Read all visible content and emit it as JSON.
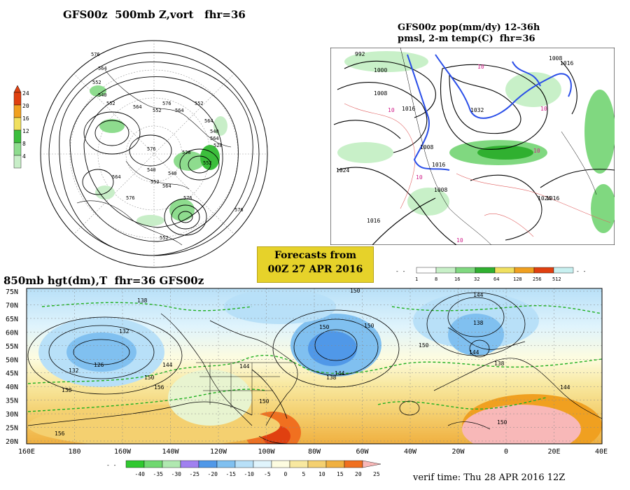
{
  "panel_500mb": {
    "title": "GFS00z  500mb Z,vort   fhr=36",
    "colorbar_ticks": [
      "24",
      "20",
      "16",
      "12",
      "8",
      "4"
    ],
    "contour_labels": [
      "576",
      "564",
      "552",
      "540",
      "552",
      "564",
      "576",
      "552",
      "564",
      "552",
      "564",
      "540",
      "528",
      "540",
      "552",
      "564",
      "576",
      "576",
      "552",
      "564",
      "528",
      "540",
      "552",
      "576",
      "564",
      "576"
    ]
  },
  "panel_precip": {
    "title_line1": "GFS00z pop(mm/dy) 12-36h",
    "title_line2": "pmsl, 2-m temp(C)  fhr=36",
    "isobar_labels": [
      "992",
      "1000",
      "1008",
      "1016",
      "1032",
      "1008",
      "1016",
      "1024",
      "1008",
      "1016",
      "1016",
      "1008",
      "1024",
      "1016"
    ],
    "temp_labels": [
      "10",
      "10",
      "10",
      "10",
      "10",
      "10"
    ],
    "colorbar_ticks": [
      "1",
      "8",
      "16",
      "32",
      "64",
      "128",
      "256",
      "512"
    ]
  },
  "forecast_box": {
    "line1": "Forecasts from",
    "line2": "00Z 27 APR 2016"
  },
  "panel_850mb": {
    "title": "850mb hgt(dm),T  fhr=36 GFS00z",
    "lat_labels": [
      "75N",
      "70N",
      "65N",
      "60N",
      "55N",
      "50N",
      "45N",
      "40N",
      "35N",
      "30N",
      "25N",
      "20N"
    ],
    "lon_labels": [
      "160E",
      "180",
      "160W",
      "140W",
      "120W",
      "100W",
      "80W",
      "60W",
      "40W",
      "20W",
      "0",
      "20E",
      "40E"
    ],
    "contour_labels": [
      "138",
      "132",
      "126",
      "132",
      "138",
      "144",
      "150",
      "156",
      "156",
      "150",
      "144",
      "138",
      "144",
      "150",
      "150",
      "144",
      "138",
      "144",
      "138",
      "144",
      "150",
      "150",
      "150"
    ],
    "colorbar_ticks": [
      "-40",
      "-35",
      "-30",
      "-25",
      "-20",
      "-15",
      "-10",
      "-5",
      "0",
      "5",
      "10",
      "15",
      "20",
      "25"
    ],
    "verif_time": "verif time: Thu 28 APR 2016 12Z"
  },
  "colors": {
    "vort_scale": [
      "#ffffff",
      "#c8eec8",
      "#8edc8e",
      "#3cbe3c",
      "#f0e060",
      "#f0a020",
      "#e04010"
    ],
    "precip_scale": [
      "#ffffff",
      "#c8f0c8",
      "#80d880",
      "#30b030",
      "#f0e060",
      "#f0a020",
      "#e04010",
      "#c8f0f0"
    ],
    "temp_scale": [
      "#30c830",
      "#70d870",
      "#b0e8b0",
      "#a080f0",
      "#5098e8",
      "#80c0f0",
      "#b8e0f8",
      "#e0f4fc",
      "#fdfce0",
      "#f8e8a0",
      "#f4d070",
      "#f0b040",
      "#f07020",
      "#f8b8b8"
    ],
    "forecast_box": "#e6d22a"
  }
}
